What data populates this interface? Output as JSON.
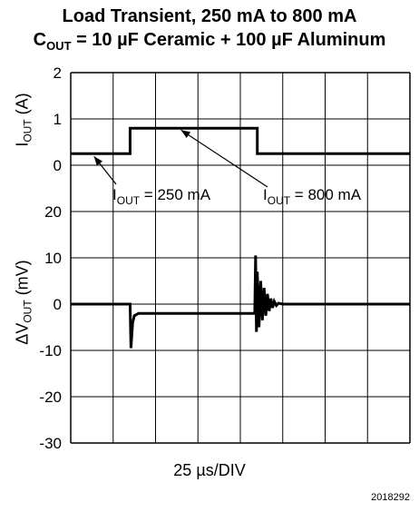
{
  "title": {
    "line1": "Load Transient, 250 mA to 800 mA",
    "line2_prefix": "C",
    "line2_sub": "OUT",
    "line2_rest": " = 10 µF Ceramic + 100 µF Aluminum"
  },
  "footer": {
    "figure_id": "2018292"
  },
  "chart_data": [
    {
      "type": "line",
      "panel": "upper",
      "ylabel": "I_OUT (A)",
      "ylabel_main": "I",
      "ylabel_sub": "OUT",
      "ylabel_unit": " (A)",
      "yticks": [
        "2",
        "1",
        "0"
      ],
      "ylim": [
        -0.5,
        2
      ],
      "xlabel": "",
      "x_divisions": 8,
      "series": [
        {
          "x": [
            0,
            1.4,
            1.4,
            4.4,
            4.4,
            8
          ],
          "values": [
            0.25,
            0.25,
            0.8,
            0.8,
            0.25,
            0.25
          ]
        }
      ],
      "annotations": [
        {
          "prefix": "I",
          "sub": "OUT",
          "text": " = 250 mA",
          "points_to": [
            0.25,
            0.25
          ]
        },
        {
          "prefix": "I",
          "sub": "OUT",
          "text": " = 800 mA",
          "points_to": [
            2.6,
            0.8
          ]
        }
      ]
    },
    {
      "type": "line",
      "panel": "lower",
      "ylabel": "ΔV_OUT (mV)",
      "ylabel_main": "ΔV",
      "ylabel_sub": "OUT",
      "ylabel_unit": " (mV)",
      "yticks": [
        "20",
        "10",
        "0",
        "-10",
        "-20",
        "-30"
      ],
      "ylim": [
        -30,
        20
      ],
      "xlabel": "25 µs/DIV",
      "series": [
        {
          "x": [
            0,
            1.4,
            1.42,
            1.46,
            1.5,
            1.6,
            4.34,
            4.36,
            4.38,
            4.4,
            4.44,
            4.48,
            4.52,
            4.56,
            4.6,
            4.64,
            4.68,
            4.72,
            4.76,
            4.8,
            4.85,
            4.9,
            5.0,
            8
          ],
          "values": [
            0,
            0,
            -9.5,
            -4,
            -2.5,
            -2,
            -2,
            10.5,
            -6,
            7,
            -5,
            5,
            -3.5,
            3.5,
            -2.5,
            2.2,
            -1.5,
            1.2,
            -0.8,
            0.6,
            -0.3,
            0.2,
            0,
            0
          ]
        }
      ]
    }
  ]
}
